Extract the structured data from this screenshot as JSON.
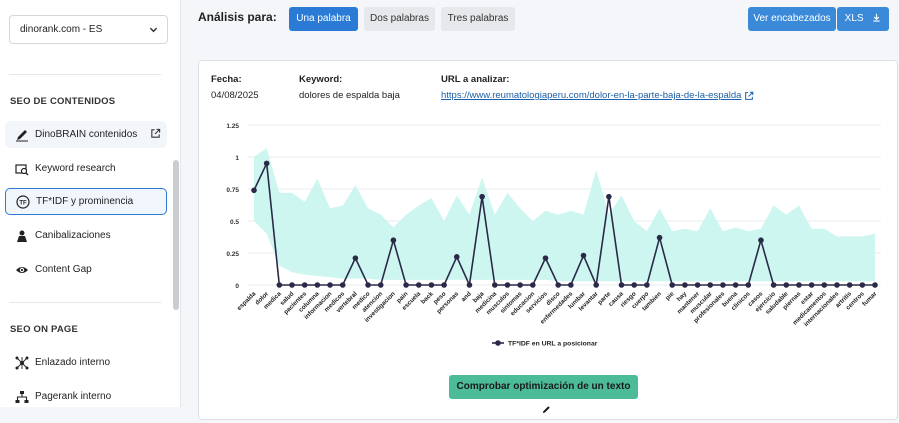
{
  "sidebar": {
    "site_select": "dinorank.com - ES",
    "sections": [
      {
        "title": "SEO DE CONTENIDOS"
      },
      {
        "title": "SEO ON PAGE"
      }
    ],
    "items": [
      {
        "label": "DinoBRAIN contenidos",
        "icon": "pen-icon"
      },
      {
        "label": "Keyword research",
        "icon": "keyword-search-icon"
      },
      {
        "label": "TF*IDF y prominencia",
        "icon": "tfidf-icon"
      },
      {
        "label": "Canibalizaciones",
        "icon": "cannibal-icon"
      },
      {
        "label": "Content Gap",
        "icon": "eye-icon"
      },
      {
        "label": "Enlazado interno",
        "icon": "link-network-icon"
      },
      {
        "label": "Pagerank interno",
        "icon": "sitemap-icon"
      }
    ]
  },
  "header": {
    "title": "Análisis para:",
    "tabs": [
      "Una palabra",
      "Dos palabras",
      "Tres palabras"
    ],
    "ver_encabezados": "Ver encabezados",
    "xls": "XLS"
  },
  "info": {
    "fecha_label": "Fecha:",
    "fecha": "04/08/2025",
    "keyword_label": "Keyword:",
    "keyword": "dolores de espalda baja",
    "url_label": "URL a analizar:",
    "url": "https://www.reumatologiaperu.com/dolor-en-la-parte-baja-de-la-espalda"
  },
  "check_button": "Comprobar optimización de un texto",
  "colors": {
    "accent": "#2b7bd6",
    "area": "#c9f5ef",
    "line": "#2a2a48",
    "check": "#4cbb98"
  },
  "chart_data": {
    "type": "line",
    "ylim": [
      0,
      1.25
    ],
    "yticks": [
      "1.25",
      "1",
      "0.75",
      "0.5",
      "0.25",
      "0"
    ],
    "ytick_values": [
      1.25,
      1,
      0.75,
      0.5,
      0.25,
      0
    ],
    "categories": [
      "espalda",
      "dolor",
      "medica",
      "salud",
      "pacientes",
      "columna",
      "informacion",
      "medicos",
      "vertebral",
      "medico",
      "atencion",
      "investigacion",
      "pain",
      "escuela",
      "back",
      "peso",
      "personas",
      "and",
      "baja",
      "medicina",
      "musculos",
      "sintomas",
      "educacion",
      "servicios",
      "disco",
      "enfermedades",
      "lumbar",
      "levantar",
      "parte",
      "causa",
      "riesgo",
      "cuerpo",
      "tambien",
      "pie",
      "hay",
      "mantener",
      "muscular",
      "profesionales",
      "buena",
      "clinicos",
      "casos",
      "ejercicio",
      "saludable",
      "piernas",
      "estar",
      "medicamentos",
      "internacionales",
      "artritis",
      "centros",
      "fumar"
    ],
    "series": [
      {
        "name": "TF*IDF en URL a posicionar",
        "values": [
          0.74,
          0.95,
          0,
          0,
          0,
          0,
          0,
          0,
          0.21,
          0,
          0,
          0.35,
          0,
          0,
          0,
          0,
          0.22,
          0,
          0.69,
          0,
          0,
          0,
          0,
          0.21,
          0,
          0,
          0.23,
          0,
          0.69,
          0,
          0,
          0,
          0.37,
          0,
          0,
          0,
          0,
          0,
          0,
          0,
          0.35,
          0,
          0,
          0,
          0,
          0,
          0,
          0,
          0,
          0
        ]
      }
    ],
    "area_upper": [
      1.0,
      1.07,
      0.72,
      0.72,
      0.65,
      0.83,
      0.6,
      0.62,
      0.78,
      0.6,
      0.55,
      0.45,
      0.55,
      0.62,
      0.68,
      0.5,
      0.7,
      0.55,
      0.84,
      0.55,
      0.72,
      0.6,
      0.5,
      0.58,
      0.55,
      0.58,
      0.55,
      0.9,
      0.55,
      0.7,
      0.5,
      0.42,
      0.6,
      0.42,
      0.44,
      0.42,
      0.6,
      0.42,
      0.45,
      0.42,
      0.44,
      0.62,
      0.55,
      0.62,
      0.44,
      0.44,
      0.38,
      0.38,
      0.38,
      0.4
    ],
    "area_lower": [
      0.5,
      0.4,
      0.15,
      0.1,
      0.08,
      0.07,
      0.06,
      0.05,
      0.05,
      0.05,
      0.04,
      0.04,
      0.04,
      0.04,
      0.04,
      0.04,
      0.04,
      0.04,
      0.04,
      0.04,
      0.04,
      0.04,
      0.04,
      0.04,
      0.03,
      0.03,
      0.03,
      0.03,
      0.03,
      0.03,
      0.03,
      0.03,
      0.03,
      0.03,
      0.03,
      0.03,
      0.03,
      0.03,
      0.03,
      0.03,
      0.03,
      0.03,
      0.03,
      0.03,
      0.03,
      0.03,
      0.03,
      0.03,
      0.03,
      0.03
    ],
    "legend": "bottom-center",
    "grid": true
  }
}
